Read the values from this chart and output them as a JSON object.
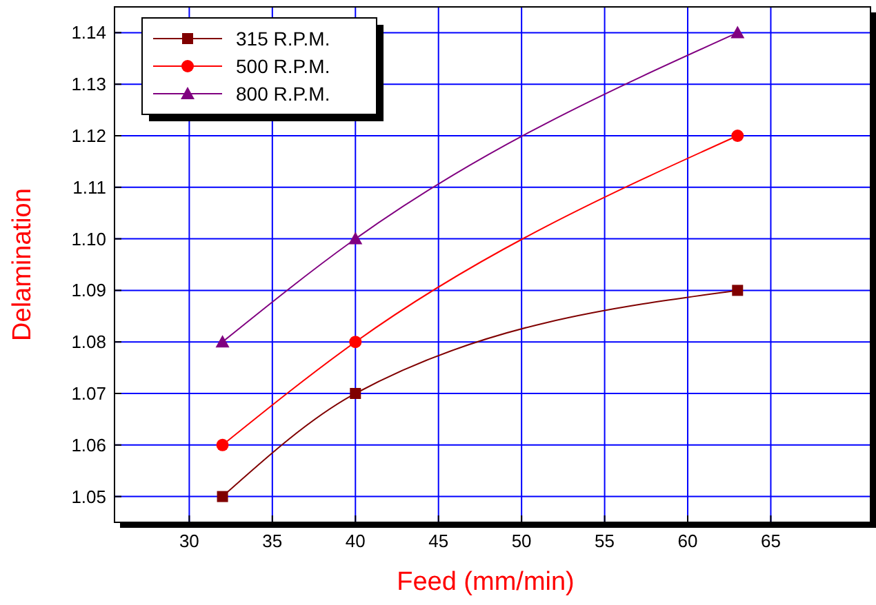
{
  "chart_data": {
    "type": "line",
    "xlabel": "Feed  (mm/min)",
    "ylabel": "Delamination",
    "xlim": [
      25.5,
      71
    ],
    "xticks": [
      30,
      35,
      40,
      45,
      50,
      55,
      60,
      65
    ],
    "ylim": [
      1.045,
      1.145
    ],
    "yticks": [
      {
        "value": 1.05,
        "label": "1.05"
      },
      {
        "value": 1.06,
        "label": "1.06"
      },
      {
        "value": 1.07,
        "label": "1.07"
      },
      {
        "value": 1.08,
        "label": "1.08"
      },
      {
        "value": 1.09,
        "label": "1.09"
      },
      {
        "value": 1.1,
        "label": "1.10"
      },
      {
        "value": 1.11,
        "label": "1.11"
      },
      {
        "value": 1.12,
        "label": "1.12"
      },
      {
        "value": 1.13,
        "label": "1.13"
      },
      {
        "value": 1.14,
        "label": "1.14"
      }
    ],
    "grid": true,
    "legend": "top left",
    "x": [
      32,
      40,
      63
    ],
    "series": [
      {
        "name": "315 R.P.M.",
        "color": "#800000",
        "marker": "square",
        "values": [
          1.05,
          1.07,
          1.09
        ]
      },
      {
        "name": "500 R.P.M.",
        "color": "#ff0000",
        "marker": "circle",
        "values": [
          1.06,
          1.08,
          1.12
        ]
      },
      {
        "name": "800 R.P.M.",
        "color": "#800080",
        "marker": "triangle",
        "values": [
          1.08,
          1.1,
          1.14
        ]
      }
    ]
  }
}
